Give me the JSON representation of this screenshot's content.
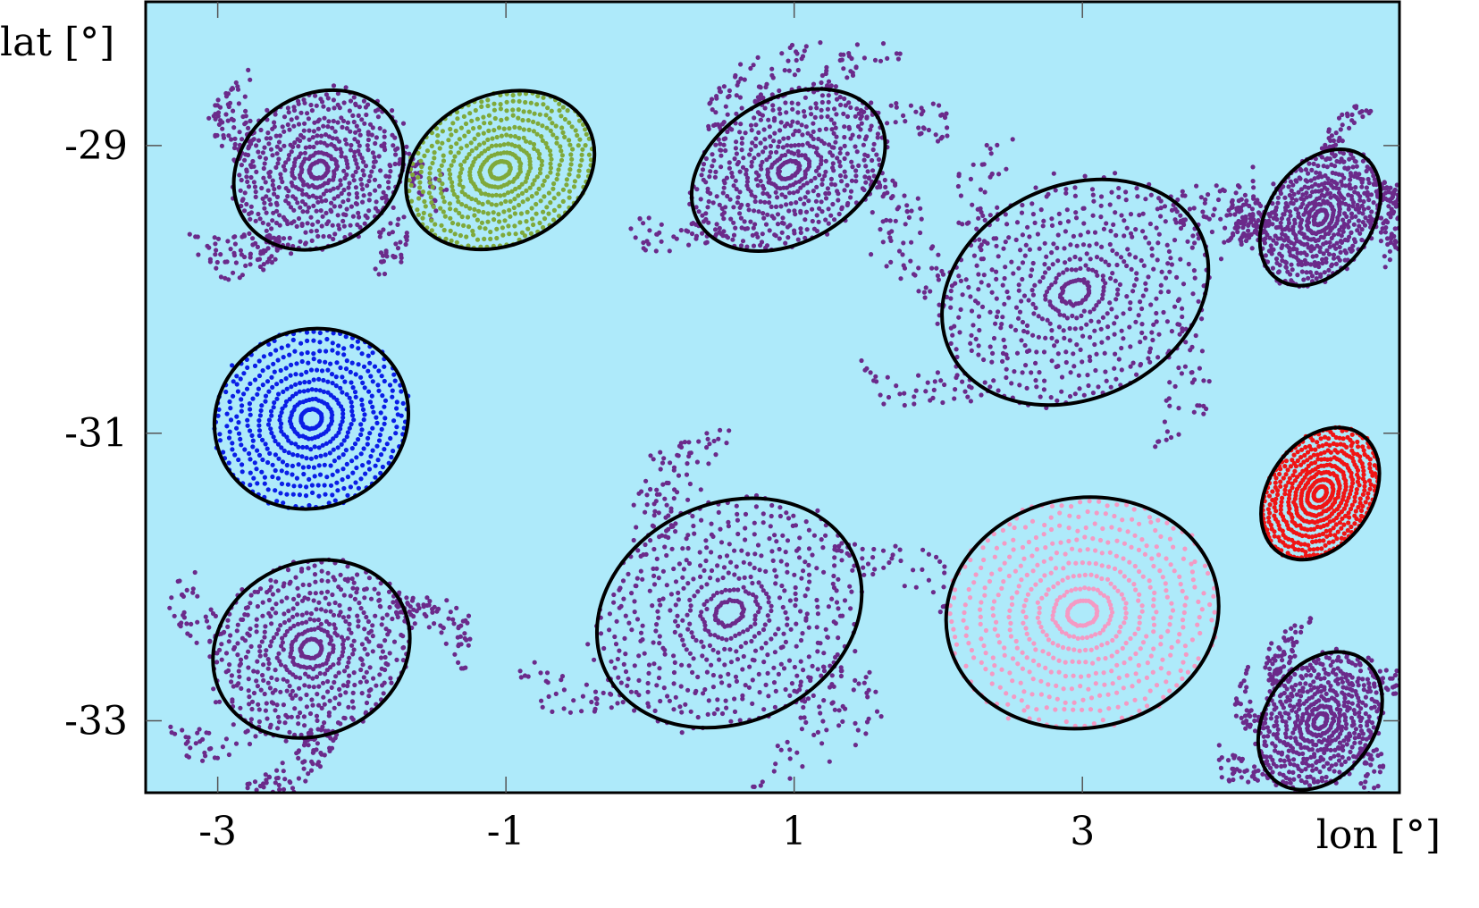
{
  "chart_data": {
    "type": "scatter",
    "title": "",
    "xlabel": "lon [°]",
    "ylabel": "lat [°]",
    "xlim": [
      -3.5,
      5.2
    ],
    "ylim": [
      -33.5,
      -28.0
    ],
    "xticks": [
      -3,
      -1,
      1,
      3
    ],
    "yticks": [
      -29,
      -31,
      -33
    ],
    "xtick_labels": [
      "-3",
      "-1",
      "1",
      "3"
    ],
    "ytick_labels": [
      "-29",
      "-31",
      "-33"
    ],
    "grid": false,
    "colors": {
      "background": "#aeeafa",
      "purple": "#6b2a8a",
      "green": "#7fa93a",
      "blue": "#0a1ee6",
      "pink": "#f49ac4",
      "red": "#f01414",
      "boundary": "#000000"
    },
    "eddies": [
      {
        "center": [
          -2.3,
          -29.17
        ],
        "semi_axes": [
          0.62,
          0.52
        ],
        "angle_deg": -35,
        "color": "purple"
      },
      {
        "center": [
          -1.04,
          -29.17
        ],
        "semi_axes": [
          0.68,
          0.52
        ],
        "angle_deg": -25,
        "color": "green"
      },
      {
        "center": [
          0.96,
          -29.17
        ],
        "semi_axes": [
          0.72,
          0.5
        ],
        "angle_deg": -30,
        "color": "purple"
      },
      {
        "center": [
          2.95,
          -30.02
        ],
        "semi_axes": [
          0.96,
          0.74
        ],
        "angle_deg": -25,
        "color": "purple"
      },
      {
        "center": [
          4.65,
          -29.5
        ],
        "semi_axes": [
          0.52,
          0.36
        ],
        "angle_deg": -55,
        "color": "purple"
      },
      {
        "center": [
          -2.35,
          -30.9
        ],
        "semi_axes": [
          0.68,
          0.62
        ],
        "angle_deg": -20,
        "color": "blue"
      },
      {
        "center": [
          4.65,
          -31.42
        ],
        "semi_axes": [
          0.5,
          0.36
        ],
        "angle_deg": -55,
        "color": "red"
      },
      {
        "center": [
          0.55,
          -32.25
        ],
        "semi_axes": [
          0.95,
          0.76
        ],
        "angle_deg": -25,
        "color": "purple"
      },
      {
        "center": [
          3.0,
          -32.25
        ],
        "semi_axes": [
          0.95,
          0.8
        ],
        "angle_deg": -10,
        "color": "pink"
      },
      {
        "center": [
          -2.35,
          -32.5
        ],
        "semi_axes": [
          0.7,
          0.6
        ],
        "angle_deg": -25,
        "color": "purple"
      },
      {
        "center": [
          4.65,
          -33.0
        ],
        "semi_axes": [
          0.52,
          0.38
        ],
        "angle_deg": -55,
        "color": "purple"
      }
    ]
  }
}
